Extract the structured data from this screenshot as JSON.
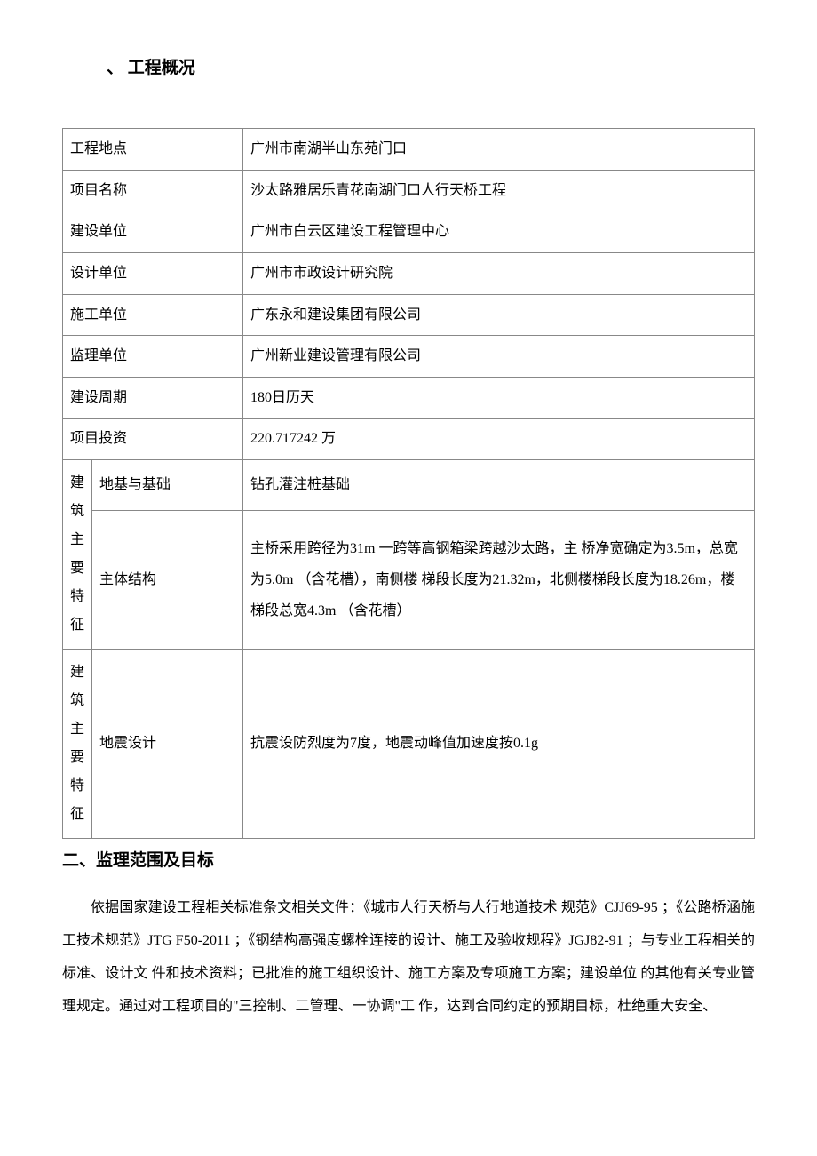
{
  "headings": {
    "section1": "、  工程概况",
    "section2": "二、监理范围及目标"
  },
  "table": {
    "rows": [
      {
        "label": "工程地点",
        "value": "广州市南湖半山东苑门口"
      },
      {
        "label": "项目名称",
        "value": "沙太路雅居乐青花南湖门口人行天桥工程"
      },
      {
        "label": "建设单位",
        "value": "广州市白云区建设工程管理中心"
      },
      {
        "label": "设计单位",
        "value": "广州市市政设计研究院"
      },
      {
        "label": "施工单位",
        "value": "广东永和建设集团有限公司"
      },
      {
        "label": "监理单位",
        "value": "广州新业建设管理有限公司"
      },
      {
        "label": "建设周期",
        "value": "180日历天"
      },
      {
        "label": "项目投资",
        "value": "220.717242 万"
      }
    ],
    "feature_group_label": "建筑主要特征",
    "features": [
      {
        "sublabel": "地基与基础",
        "value": "钻孔灌注桩基础"
      },
      {
        "sublabel": "主体结构",
        "value": "主桥采用跨径为31m 一跨等高钢箱梁跨越沙太路，主 桥净宽确定为3.5m，总宽为5.0m （含花槽），南侧楼 梯段长度为21.32m，北侧楼梯段长度为18.26m，楼 梯段总宽4.3m （含花槽）"
      },
      {
        "sublabel": "地震设计",
        "value": "抗震设防烈度为7度，地震动峰值加速度按0.1g"
      }
    ]
  },
  "body": {
    "paragraph1": "依据国家建设工程相关标准条文相关文件：《城市人行天桥与人行地道技术 规范》CJJ69-95 ；《公路桥涵施工技术规范》JTG F50-2011                                                             ；《钢结构高强度螺栓连接的设计、施工及验收规程》JGJ82-91  ；与专业工程相关的标准、设计文  件和技术资料；已批准的施工组织设计、施工方案及专项施工方案；建设单位 的其他有关专业管理规定。通过对工程项目的\"三控制、二管理、一协调\"工    作，达到合同约定的预期目标，杜绝重大安全、"
  },
  "style": {
    "background_color": "#ffffff",
    "text_color": "#000000",
    "border_color": "#888888",
    "body_fontsize": 16,
    "heading_fontsize": 19,
    "font_family": "SimSun"
  }
}
